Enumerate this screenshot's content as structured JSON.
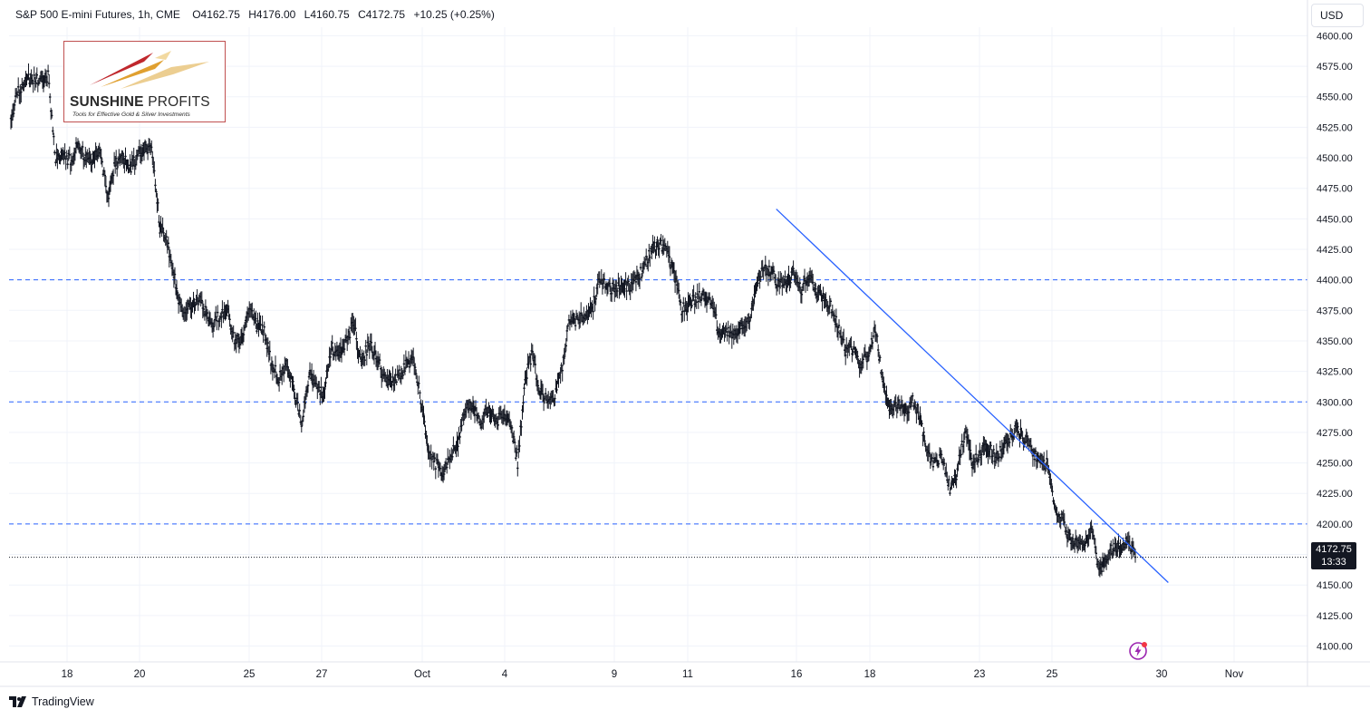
{
  "header": {
    "title": "S&P 500 E-mini Futures, 1h, CME",
    "open": "O4162.75",
    "high": "H4176.00",
    "low": "L4160.75",
    "close": "C4172.75",
    "change": "+10.25 (+0.25%)"
  },
  "currency_button": "USD",
  "logo": {
    "name_bold": "SUNSHINE",
    "name_thin": "PROFITS",
    "tagline": "Tools for Effective Gold & Silver Investments"
  },
  "last_price": {
    "value": "4172.75",
    "countdown": "13:33"
  },
  "footer_brand": "TradingView",
  "colors": {
    "candle": "#131722",
    "level_line": "#2962ff",
    "trendline": "#2962ff",
    "last_price_line": "#131722",
    "alert_icon": "#9c27b0"
  },
  "chart_data": {
    "type": "line",
    "timeframe": "1h",
    "ylim": [
      4087,
      4607
    ],
    "y_ticks": [
      4100,
      4125,
      4150,
      4175,
      4200,
      4225,
      4250,
      4275,
      4300,
      4325,
      4350,
      4375,
      4400,
      4425,
      4450,
      4475,
      4500,
      4525,
      4550,
      4575,
      4600
    ],
    "x_ticks": [
      "18",
      "20",
      "25",
      "27",
      "Oct",
      "4",
      "9",
      "11",
      "16",
      "18",
      "23",
      "25",
      "30",
      "Nov"
    ],
    "horizontal_levels": [
      4400,
      4300,
      4200
    ],
    "last_price_level": 4172.75,
    "series": [
      {
        "values": [
          [
            0,
            4530
          ],
          [
            1,
            4555
          ],
          [
            2,
            4563
          ],
          [
            3,
            4566
          ],
          [
            4,
            4561
          ],
          [
            5,
            4567
          ],
          [
            6,
            4500
          ],
          [
            7,
            4503
          ],
          [
            8,
            4497
          ],
          [
            9,
            4512
          ],
          [
            10,
            4500
          ],
          [
            11,
            4499
          ],
          [
            12,
            4505
          ],
          [
            13,
            4468
          ],
          [
            14,
            4495
          ],
          [
            15,
            4499
          ],
          [
            16,
            4492
          ],
          [
            17,
            4501
          ],
          [
            18,
            4508
          ],
          [
            19,
            4505
          ],
          [
            20,
            4443
          ],
          [
            21,
            4430
          ],
          [
            22,
            4400
          ],
          [
            23,
            4371
          ],
          [
            24,
            4379
          ],
          [
            25,
            4385
          ],
          [
            26,
            4376
          ],
          [
            27,
            4364
          ],
          [
            28,
            4371
          ],
          [
            29,
            4376
          ],
          [
            30,
            4350
          ],
          [
            31,
            4351
          ],
          [
            32,
            4381
          ],
          [
            33,
            4362
          ],
          [
            34,
            4358
          ],
          [
            35,
            4330
          ],
          [
            36,
            4320
          ],
          [
            37,
            4334
          ],
          [
            38,
            4310
          ],
          [
            39,
            4281
          ],
          [
            40,
            4322
          ],
          [
            41,
            4313
          ],
          [
            42,
            4305
          ],
          [
            43,
            4346
          ],
          [
            44,
            4336
          ],
          [
            45,
            4350
          ],
          [
            46,
            4365
          ],
          [
            47,
            4330
          ],
          [
            48,
            4348
          ],
          [
            49,
            4340
          ],
          [
            50,
            4319
          ],
          [
            51,
            4314
          ],
          [
            52,
            4320
          ],
          [
            53,
            4331
          ],
          [
            54,
            4332
          ],
          [
            55,
            4303
          ],
          [
            56,
            4256
          ],
          [
            57,
            4249
          ],
          [
            58,
            4240
          ],
          [
            59,
            4256
          ],
          [
            60,
            4268
          ],
          [
            61,
            4296
          ],
          [
            62,
            4298
          ],
          [
            63,
            4282
          ],
          [
            64,
            4293
          ],
          [
            65,
            4282
          ],
          [
            66,
            4291
          ],
          [
            67,
            4284
          ],
          [
            68,
            4250
          ],
          [
            69,
            4318
          ],
          [
            70,
            4340
          ],
          [
            71,
            4307
          ],
          [
            72,
            4301
          ],
          [
            73,
            4305
          ],
          [
            74,
            4330
          ],
          [
            75,
            4369
          ],
          [
            76,
            4366
          ],
          [
            77,
            4371
          ],
          [
            78,
            4375
          ],
          [
            79,
            4403
          ],
          [
            80,
            4395
          ],
          [
            81,
            4392
          ],
          [
            82,
            4395
          ],
          [
            83,
            4395
          ],
          [
            84,
            4400
          ],
          [
            85,
            4411
          ],
          [
            86,
            4425
          ],
          [
            87,
            4429
          ],
          [
            88,
            4422
          ],
          [
            89,
            4406
          ],
          [
            90,
            4375
          ],
          [
            91,
            4380
          ],
          [
            92,
            4384
          ],
          [
            93,
            4389
          ],
          [
            94,
            4382
          ],
          [
            95,
            4357
          ],
          [
            96,
            4360
          ],
          [
            97,
            4354
          ],
          [
            98,
            4360
          ],
          [
            99,
            4366
          ],
          [
            100,
            4394
          ],
          [
            101,
            4411
          ],
          [
            102,
            4406
          ],
          [
            103,
            4396
          ],
          [
            104,
            4398
          ],
          [
            105,
            4405
          ],
          [
            106,
            4391
          ],
          [
            107,
            4404
          ],
          [
            108,
            4392
          ],
          [
            109,
            4387
          ],
          [
            110,
            4379
          ],
          [
            111,
            4360
          ],
          [
            112,
            4342
          ],
          [
            113,
            4343
          ],
          [
            114,
            4330
          ],
          [
            115,
            4338
          ],
          [
            116,
            4360
          ],
          [
            117,
            4316
          ],
          [
            118,
            4294
          ],
          [
            119,
            4298
          ],
          [
            120,
            4291
          ],
          [
            121,
            4300
          ],
          [
            122,
            4290
          ],
          [
            123,
            4256
          ],
          [
            124,
            4250
          ],
          [
            125,
            4255
          ],
          [
            126,
            4230
          ],
          [
            127,
            4243
          ],
          [
            128,
            4276
          ],
          [
            129,
            4251
          ],
          [
            130,
            4257
          ],
          [
            131,
            4263
          ],
          [
            132,
            4256
          ],
          [
            133,
            4260
          ],
          [
            134,
            4271
          ],
          [
            135,
            4278
          ],
          [
            136,
            4270
          ],
          [
            137,
            4261
          ],
          [
            138,
            4252
          ],
          [
            139,
            4249
          ],
          [
            140,
            4218
          ],
          [
            141,
            4204
          ],
          [
            142,
            4188
          ],
          [
            143,
            4184
          ],
          [
            144,
            4180
          ],
          [
            145,
            4197
          ],
          [
            146,
            4160
          ],
          [
            147,
            4172
          ],
          [
            148,
            4182
          ],
          [
            149,
            4181
          ],
          [
            150,
            4185
          ],
          [
            151,
            4172
          ]
        ]
      }
    ],
    "annotations": [
      {
        "type": "trendline",
        "from": [
          102.7,
          4458
        ],
        "to": [
          155.3,
          4152
        ]
      }
    ]
  }
}
